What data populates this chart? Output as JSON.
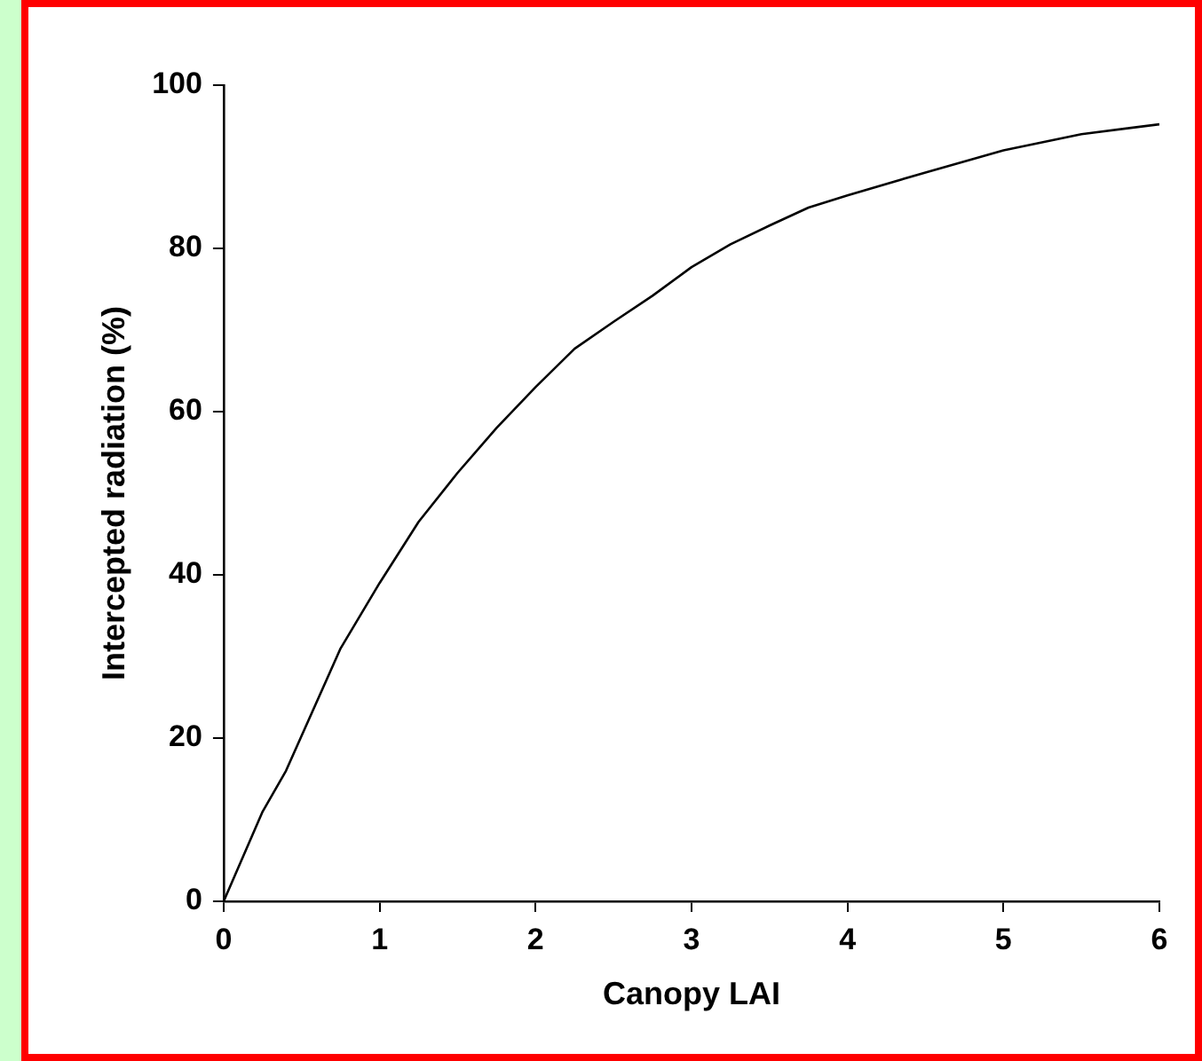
{
  "chart_data": {
    "type": "line",
    "xlabel": "Canopy LAI",
    "ylabel": "Intercepted radiation (%)",
    "x": [
      0,
      0.25,
      0.4,
      0.75,
      1,
      1.25,
      1.5,
      1.75,
      2,
      2.25,
      2.5,
      2.75,
      3,
      3.25,
      3.5,
      3.75,
      4,
      4.5,
      5,
      5.5,
      6
    ],
    "series": [
      {
        "color": "#000000",
        "values": [
          0,
          11,
          16,
          31,
          39,
          46.5,
          52.5,
          58,
          63,
          67.7,
          71,
          74.2,
          77.7,
          80.5,
          82.8,
          85,
          86.5,
          89.3,
          92,
          94,
          95.2
        ]
      }
    ],
    "xlim": [
      0,
      6
    ],
    "xticks": [
      0,
      1,
      2,
      3,
      4,
      5,
      6
    ],
    "ylim": [
      0,
      100
    ],
    "yticks": [
      0,
      20,
      40,
      60,
      80,
      100
    ],
    "grid": false,
    "legend": false,
    "marker": "none",
    "line_style": "solid"
  }
}
